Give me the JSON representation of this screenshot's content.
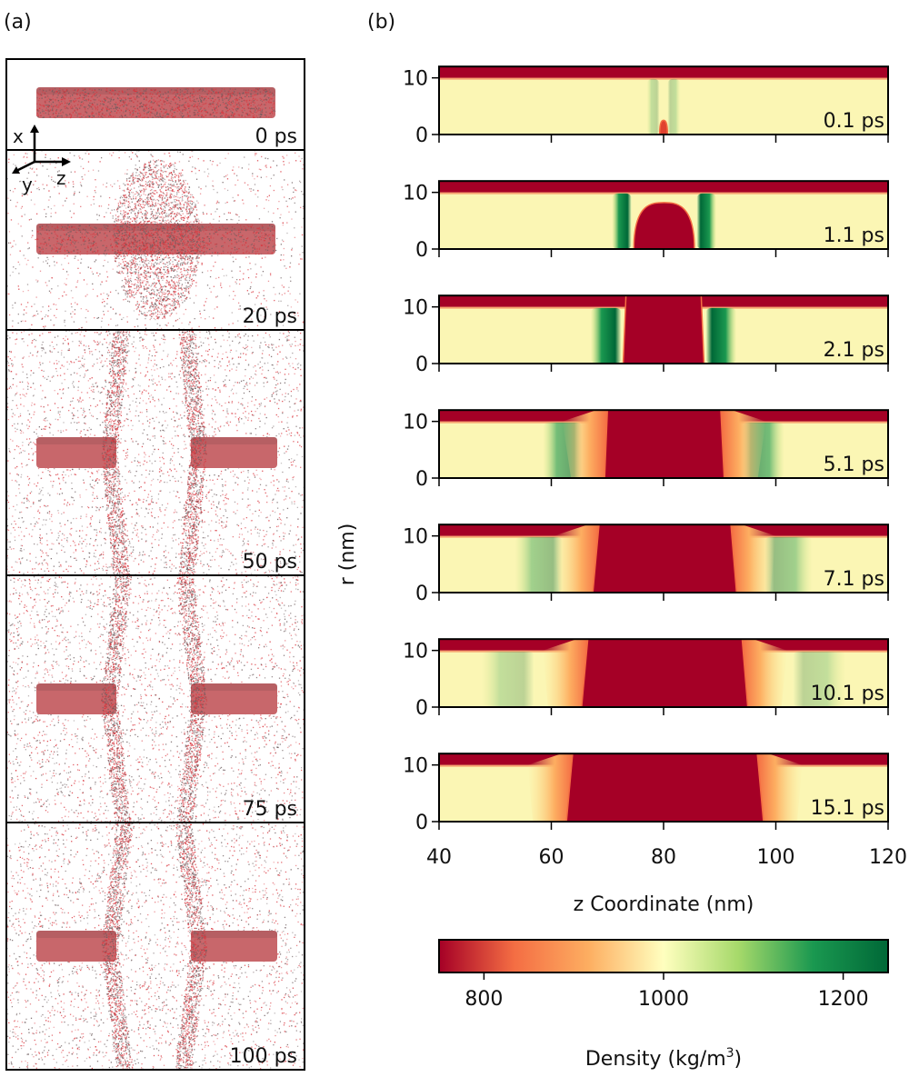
{
  "panel_a": {
    "label": "(a)",
    "axes_glyph": {
      "x": "x",
      "y": "y",
      "z": "z"
    },
    "snapshots": [
      "0 ps",
      "20 ps",
      "50 ps",
      "75 ps",
      "100 ps"
    ],
    "colors": {
      "particles_red": "#d9323a",
      "particles_grey": "#6b5a5c",
      "cylinder": "#c8676b"
    }
  },
  "panel_b": {
    "label": "(b)"
  },
  "chart_data": {
    "type": "heatmap",
    "xlabel": "z Coordinate (nm)",
    "ylabel": "r (nm)",
    "xlim": [
      40,
      120
    ],
    "ylim": [
      0,
      12
    ],
    "xticks": [
      40,
      60,
      80,
      100,
      120
    ],
    "yticks": [
      0,
      10
    ],
    "colorbar": {
      "label": "Density (kg/m",
      "label_sup": "3",
      "label_end": ")",
      "range": [
        750,
        1250
      ],
      "ticks": [
        800,
        1000,
        1200
      ],
      "colormap": "RdYlGn",
      "colors": [
        "#a50026",
        "#f46d43",
        "#fdae61",
        "#ffffbf",
        "#a6d96a",
        "#1a9850",
        "#006837"
      ]
    },
    "background_density": 1000,
    "wall_r_from": 10,
    "panels": [
      {
        "time": "0.1 ps",
        "core": {
          "z_bottom": [
            79.3,
            80.7
          ],
          "z_top": [
            79.8,
            80.2
          ],
          "r_top": 2.5
        },
        "shells": [
          [
            77,
            79.3
          ],
          [
            80.7,
            83
          ]
        ],
        "shell_strength": 0.25
      },
      {
        "time": "1.1 ps",
        "core": {
          "z_bottom": [
            74.7,
            85.5
          ],
          "z_top": [
            78,
            82
          ],
          "r_top": 8.2
        },
        "shells": [
          [
            70.8,
            74.3
          ],
          [
            85.9,
            89.4
          ]
        ],
        "shell_strength": 1.0
      },
      {
        "time": "2.1 ps",
        "core": {
          "z_bottom": [
            72.8,
            87.2
          ],
          "z_top": [
            73.3,
            86.7
          ],
          "r_top": 12
        },
        "shells": [
          [
            67.0,
            72.5
          ],
          [
            87.5,
            93.0
          ]
        ],
        "shell_strength": 1.0
      },
      {
        "time": "5.1 ps",
        "core": {
          "z_bottom": [
            69.5,
            90.8
          ],
          "z_top": [
            70.0,
            90.2
          ],
          "r_top": 12
        },
        "shells": [
          [
            58.5,
            65.5
          ],
          [
            94.0,
            101.5
          ]
        ],
        "shell_strength": 0.6
      },
      {
        "time": "7.1 ps",
        "core": {
          "z_bottom": [
            67.4,
            93.0
          ],
          "z_top": [
            68.5,
            92.0
          ],
          "r_top": 12
        },
        "shells": [
          [
            53.5,
            62.0
          ],
          [
            98.0,
            106.5
          ]
        ],
        "shell_strength": 0.4
      },
      {
        "time": "10.1 ps",
        "core": {
          "z_bottom": [
            65.4,
            95.0
          ],
          "z_top": [
            66.5,
            94.0
          ],
          "r_top": 12
        },
        "shells": [
          [
            47.5,
            57.0
          ],
          [
            103.0,
            112.5
          ]
        ],
        "shell_strength": 0.25
      },
      {
        "time": "15.1 ps",
        "core": {
          "z_bottom": [
            62.7,
            97.8
          ],
          "z_top": [
            63.8,
            96.7
          ],
          "r_top": 12
        },
        "shells": [],
        "shell_strength": 0
      }
    ]
  }
}
